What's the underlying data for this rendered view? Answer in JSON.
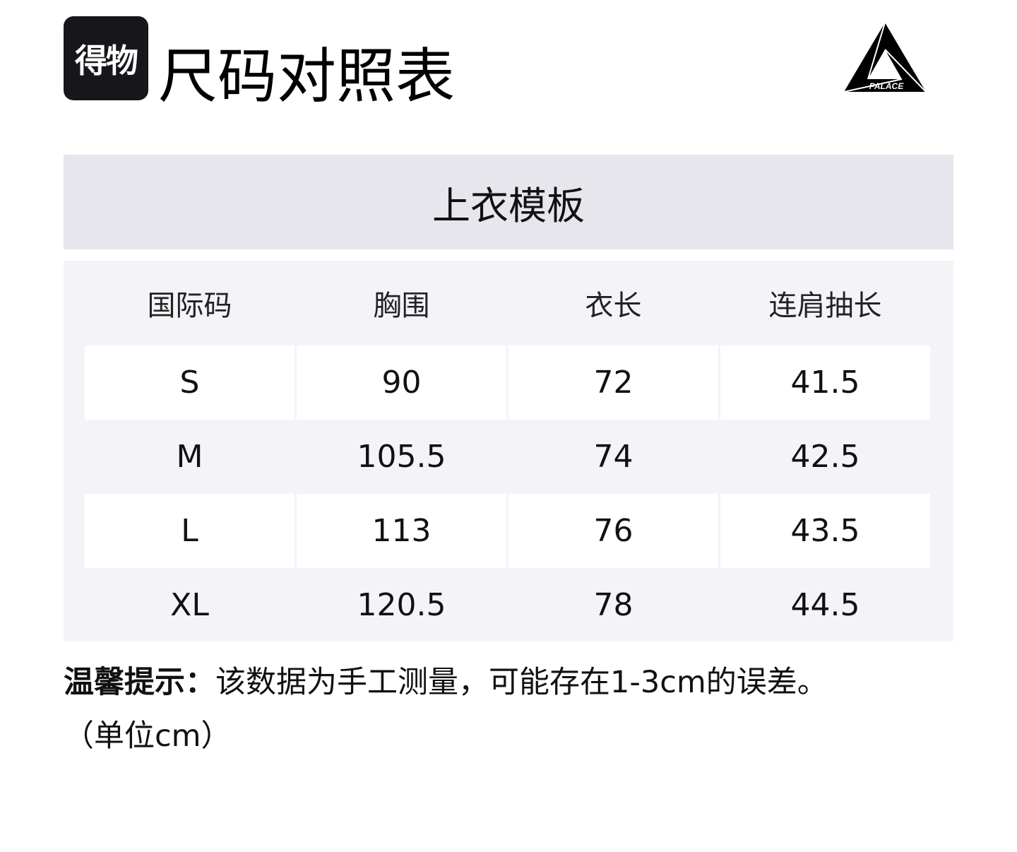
{
  "brand": {
    "logo_text": "得物",
    "brand_logo_text": "PALACE"
  },
  "title": "尺码对照表",
  "template_title": "上衣模板",
  "table": {
    "headers": [
      "国际码",
      "胸围",
      "衣长",
      "连肩抽长"
    ],
    "rows": [
      [
        "S",
        "90",
        "72",
        "41.5"
      ],
      [
        "M",
        "105.5",
        "74",
        "42.5"
      ],
      [
        "L",
        "113",
        "76",
        "43.5"
      ],
      [
        "XL",
        "120.5",
        "78",
        "44.5"
      ]
    ]
  },
  "note": {
    "label": "温馨提示：",
    "text": "该数据为手工测量，可能存在1-3cm的误差。",
    "unit": "（单位cm）"
  }
}
